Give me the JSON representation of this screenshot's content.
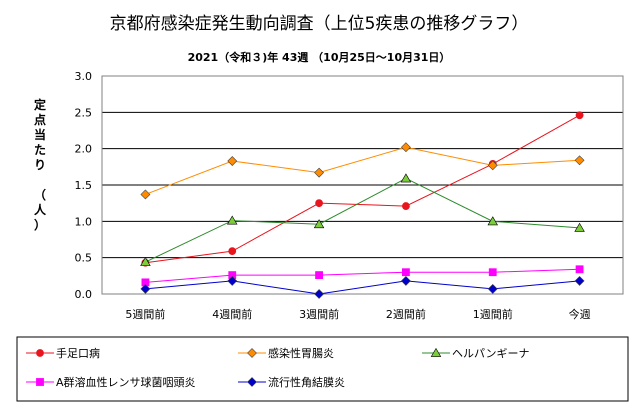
{
  "chart_data": {
    "type": "line",
    "title": "京都府感染症発生動向調査（上位5疾患の推移グラフ）",
    "subtitle": "2021（令和３)年 43週 （10月25日～10月31日）",
    "ylabel_lines": [
      "定",
      "点",
      "当",
      "た",
      "り",
      " ",
      "（",
      "人",
      "）"
    ],
    "categories": [
      "5週間前",
      "4週間前",
      "3週間前",
      "2週間前",
      "1週間前",
      "今週"
    ],
    "ylim": [
      0,
      3.0
    ],
    "yticks": [
      "0.0",
      "0.5",
      "1.0",
      "1.5",
      "2.0",
      "2.5",
      "3.0"
    ],
    "grid": true,
    "legend_position": "bottom",
    "series": [
      {
        "name": "手足口病",
        "color": "#e8141e",
        "marker": "circle",
        "values": [
          0.43,
          0.59,
          1.25,
          1.21,
          1.79,
          2.46
        ]
      },
      {
        "name": "感染性胃腸炎",
        "color": "#ff8c00",
        "marker": "diamond",
        "values": [
          1.37,
          1.83,
          1.67,
          2.02,
          1.77,
          1.84
        ]
      },
      {
        "name": "ヘルパンギーナ",
        "color": "#2e8b2e",
        "marker": "triangle",
        "values": [
          0.44,
          1.01,
          0.96,
          1.59,
          1.0,
          0.91
        ]
      },
      {
        "name": "A群溶血性レンサ球菌咽頭炎",
        "color": "#ff00ff",
        "marker": "square",
        "values": [
          0.16,
          0.26,
          0.26,
          0.3,
          0.3,
          0.34
        ]
      },
      {
        "name": "流行性角結膜炎",
        "color": "#0000cc",
        "marker": "diamond",
        "values": [
          0.07,
          0.18,
          0.0,
          0.18,
          0.07,
          0.18
        ]
      }
    ]
  }
}
